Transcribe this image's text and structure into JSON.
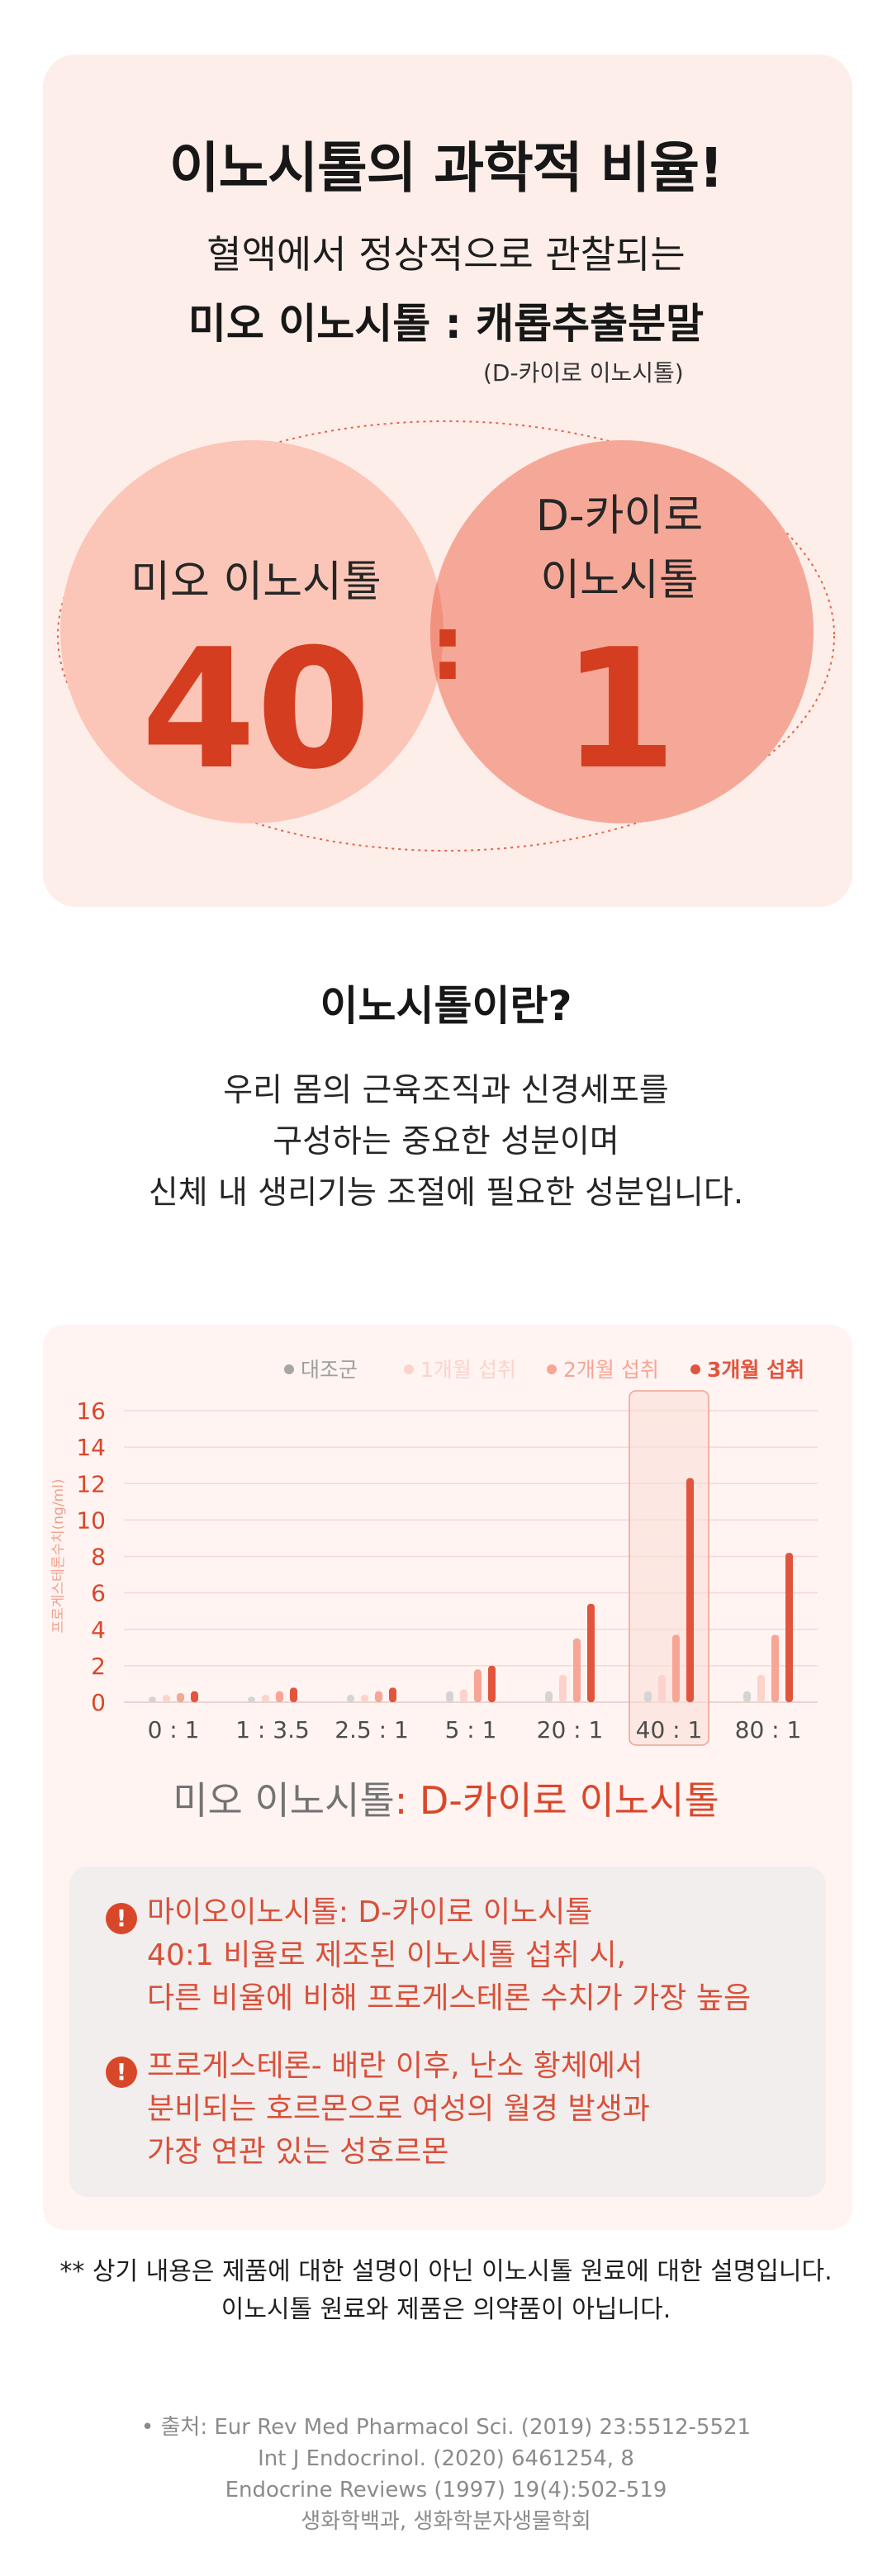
{
  "hero": {
    "title": "이노시톨의 과학적 비율!",
    "line1": "혈액에서 정상적으로 관찰되는",
    "line2": "미오 이노시톨 : 캐롭추출분말",
    "line3": "(D-카이로 이노시톨)",
    "left_label": "미오 이노시톨",
    "right_label_1": "D-카이로",
    "right_label_2": "이노시톨",
    "left_value": "40",
    "colon": ":",
    "right_value": "1",
    "colors": {
      "card_bg": "#fdeee9",
      "left_circle": "#fbc6b8",
      "right_circle": "#f6a898",
      "accent": "#d43d1f"
    }
  },
  "about": {
    "title": "이노시톨이란?",
    "lines": [
      "우리 몸의 근육조직과 신경세포를",
      "구성하는 중요한 성분이며",
      "신체 내 생리기능 조절에 필요한 성분입니다."
    ]
  },
  "chart_data": {
    "type": "bar",
    "title": "",
    "ylabel": "프로게스테론수치(ng/ml)",
    "xlabel": "",
    "ylim": [
      0,
      16
    ],
    "yticks": [
      0,
      2,
      4,
      6,
      8,
      10,
      12,
      14,
      16
    ],
    "categories": [
      "0 : 1",
      "1 : 3.5",
      "2.5 : 1",
      "5 : 1",
      "20 : 1",
      "40 : 1",
      "80 : 1"
    ],
    "highlight_category": "40 : 1",
    "legend_position": "top-right",
    "grid": true,
    "series": [
      {
        "name": "대조군",
        "color": "#d4d4d4",
        "values": [
          0.3,
          0.3,
          0.4,
          0.6,
          0.6,
          0.6,
          0.6
        ]
      },
      {
        "name": "1개월 섭취",
        "color": "#fbd3cb",
        "values": [
          0.4,
          0.4,
          0.4,
          0.7,
          1.5,
          1.5,
          1.5
        ]
      },
      {
        "name": "2개월 섭취",
        "color": "#f7a594",
        "values": [
          0.5,
          0.6,
          0.6,
          1.8,
          3.5,
          3.7,
          3.7
        ]
      },
      {
        "name": "3개월 섭취",
        "color": "#e2553d",
        "values": [
          0.6,
          0.8,
          0.8,
          2.0,
          5.4,
          12.3,
          8.2
        ]
      }
    ]
  },
  "ratio_label": {
    "left": "미오 이노시톨",
    "right": ": D-카이로 이노시톨"
  },
  "notes": [
    {
      "icon": "warning-icon",
      "lines": [
        "마이오이노시톨: D-카이로 이노시톨",
        "40:1 비율로 제조된 이노시톨 섭취 시,",
        "다른 비율에 비해 프로게스테론 수치가 가장 높음"
      ]
    },
    {
      "icon": "warning-icon",
      "lines": [
        "프로게스테론- 배란 이후, 난소 황체에서",
        "분비되는 호르몬으로 여성의 월경 발생과",
        "가장 연관 있는 성호르몬"
      ]
    }
  ],
  "disclaimer": [
    "** 상기 내용은 제품에 대한 설명이 아닌 이노시톨 원료에 대한 설명입니다.",
    "이노시톨 원료와 제품은 의약품이 아닙니다."
  ],
  "sources": [
    "• 출처: Eur Rev Med Pharmacol Sci. (2019) 23:5512-5521",
    "Int J Endocrinol. (2020) 6461254, 8",
    "Endocrine Reviews (1997) 19(4):502-519",
    "생화학백과, 생화학분자생물학회"
  ]
}
